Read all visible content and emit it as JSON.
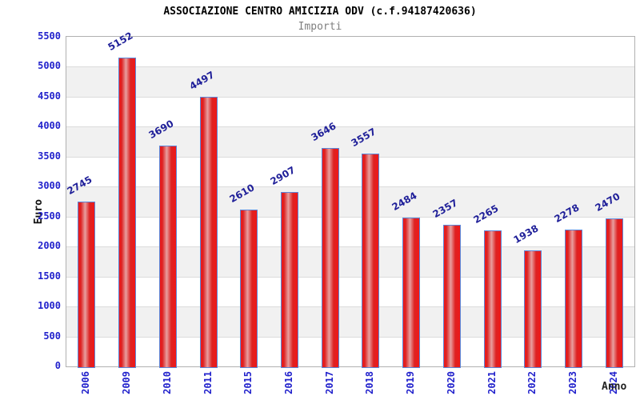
{
  "chart_data": {
    "type": "bar",
    "title": "ASSOCIAZIONE CENTRO AMICIZIA ODV (c.f.94187420636)",
    "subtitle": "Importi",
    "xlabel": "Anno",
    "ylabel": "Euro",
    "categories": [
      "2006",
      "2009",
      "2010",
      "2011",
      "2015",
      "2016",
      "2017",
      "2018",
      "2019",
      "2020",
      "2021",
      "2022",
      "2023",
      "2024"
    ],
    "values": [
      2745,
      5152,
      3690,
      4497,
      2610,
      2907,
      3646,
      3557,
      2484,
      2357,
      2265,
      1938,
      2278,
      2470
    ],
    "ylim": [
      0,
      5500
    ],
    "ytick_step": 500,
    "ytick_labels": [
      "0",
      "500",
      "1000",
      "1500",
      "2000",
      "2500",
      "3000",
      "3500",
      "4000",
      "4500",
      "5000",
      "5500"
    ],
    "grid": "horizontal-bands",
    "legend": "none",
    "colors": {
      "bar_edge": "#5b87d9",
      "bar_fill_red": "#ee1a1a",
      "bar_fill_highlight": "#e89f9f",
      "tick_label": "#2222cc",
      "value_label": "#1f1f99",
      "title": "#000000",
      "subtitle": "#7f7f7f",
      "band_gray": "#f1f1f1",
      "gridline": "#dcdcdc",
      "axis_border": "#b0b0b0",
      "axis_title": "#222222"
    }
  }
}
